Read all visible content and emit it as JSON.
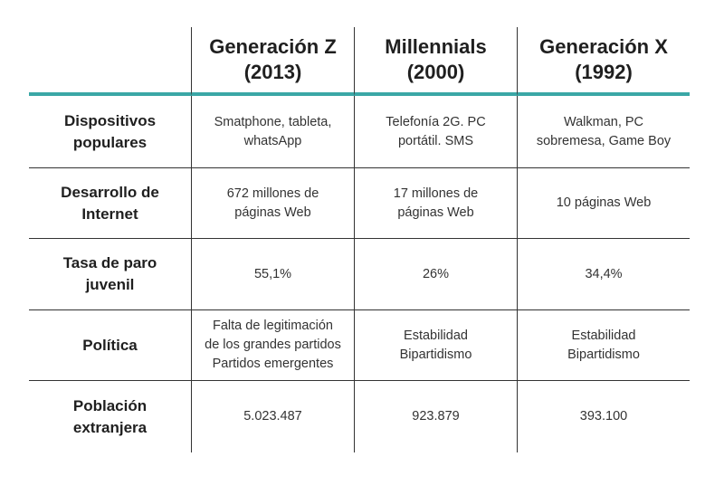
{
  "table": {
    "headers": [
      "",
      "Generación Z\n(2013)",
      "Millennials\n(2000)",
      "Generación X\n(1992)"
    ],
    "rows": [
      {
        "label": "Dispositivos\npopulares",
        "cells": [
          "Smatphone, tableta,\nwhatsApp",
          "Telefonía 2G. PC\nportátil. SMS",
          "Walkman, PC\nsobremesa, Game Boy"
        ]
      },
      {
        "label": "Desarrollo de\nInternet",
        "cells": [
          "672 millones de\npáginas Web",
          "17 millones de\npáginas Web",
          "10 páginas Web"
        ]
      },
      {
        "label": "Tasa de paro\njuvenil",
        "cells": [
          "55,1%",
          "26%",
          "34,4%"
        ]
      },
      {
        "label": "Política",
        "cells": [
          "Falta de legitimación\nde los grandes partidos\nPartidos emergentes",
          "Estabilidad\nBipartidismo",
          "Estabilidad\nBipartidismo"
        ]
      },
      {
        "label": "Población\nextranjera",
        "cells": [
          "5.023.487",
          "923.879",
          "393.100"
        ]
      }
    ]
  },
  "colors": {
    "accent_rule": "#3aa7a6",
    "grid_lines": "#333333"
  }
}
